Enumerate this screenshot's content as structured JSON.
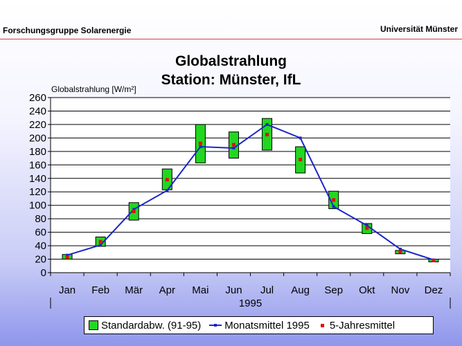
{
  "header": {
    "left": "Forschungsgruppe Solarenergie",
    "right": "Universität Münster"
  },
  "colors": {
    "box_fill": "#22d622",
    "line": "#1a26c8",
    "marker": "#e01010",
    "header_rule": "#d34040"
  },
  "chart_data": {
    "type": "line",
    "title": [
      "Globalstrahlung",
      "Station: Münster, IfL"
    ],
    "ylabel": "Globalstrahlung [W/m²]",
    "xlabel": "1995",
    "categories": [
      "Jan",
      "Feb",
      "Mär",
      "Apr",
      "Mai",
      "Jun",
      "Jul",
      "Aug",
      "Sep",
      "Okt",
      "Nov",
      "Dez"
    ],
    "ylim": [
      0,
      260
    ],
    "yticks": [
      0,
      20,
      40,
      60,
      80,
      100,
      120,
      140,
      160,
      180,
      200,
      220,
      240,
      260
    ],
    "grid": "horizontal",
    "series": [
      {
        "name": "Standardabw. (91-95)",
        "kind": "range-box",
        "low": [
          20,
          39,
          78,
          123,
          163,
          170,
          182,
          148,
          95,
          58,
          28,
          16
        ],
        "high": [
          27,
          53,
          104,
          154,
          220,
          209,
          229,
          187,
          121,
          73,
          33,
          20
        ]
      },
      {
        "name": "Monatsmittel 1995",
        "kind": "line",
        "values": [
          26,
          41,
          94,
          122,
          187,
          185,
          220,
          200,
          98,
          70,
          35,
          19
        ]
      },
      {
        "name": "5-Jahresmittel",
        "kind": "marker",
        "values": [
          23,
          46,
          91,
          138,
          192,
          190,
          205,
          168,
          108,
          66,
          31,
          18
        ]
      }
    ],
    "legend": {
      "placement": "bottom",
      "labels": [
        "Standardabw. (91-95)",
        "Monatsmittel 1995",
        "5-Jahresmittel"
      ]
    }
  }
}
